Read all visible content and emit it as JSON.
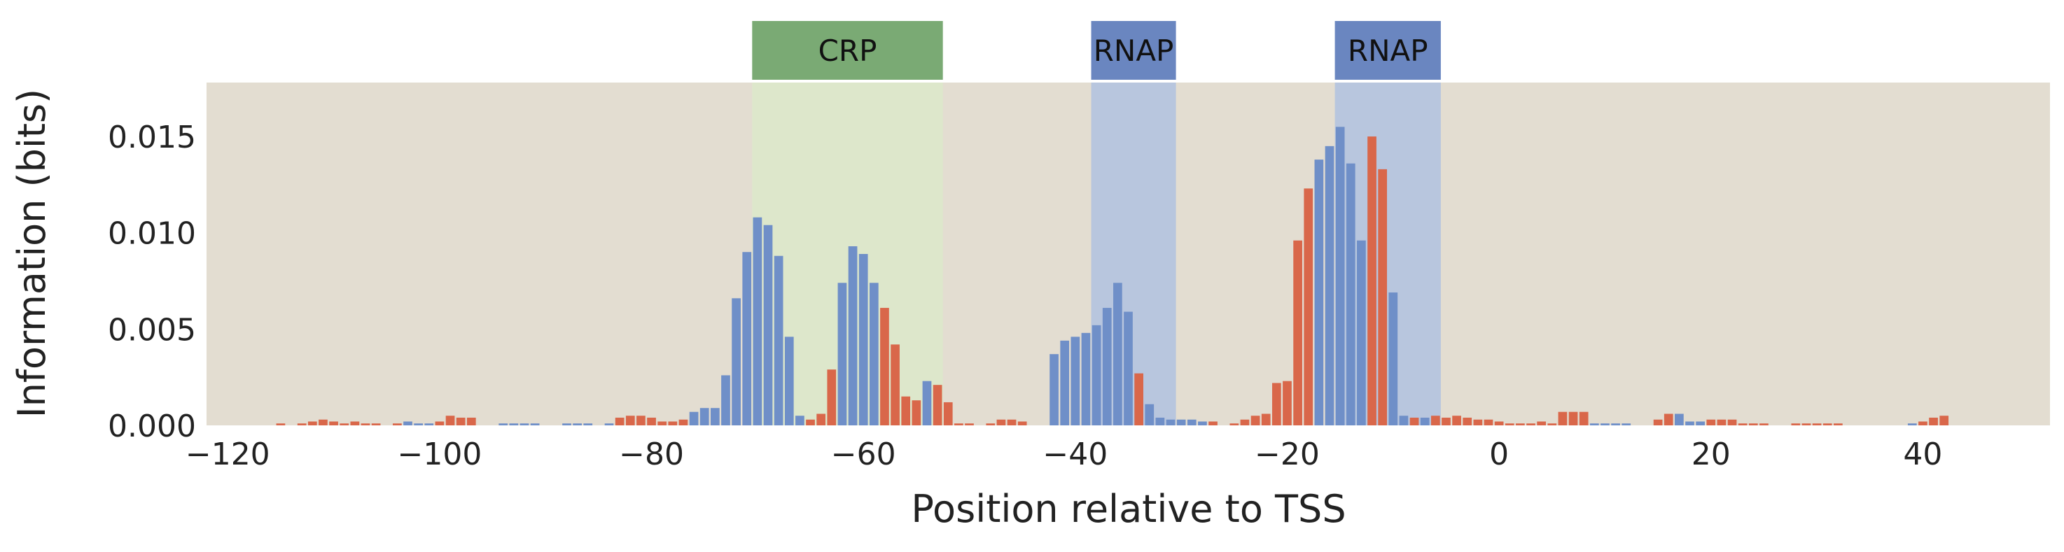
{
  "chart_data": {
    "type": "bar",
    "title": "",
    "xlabel": "Position relative to TSS",
    "ylabel": "Information (bits)",
    "xlim": [
      -122,
      52
    ],
    "ylim": [
      0,
      0.0178
    ],
    "xticks": [
      -120,
      -100,
      -80,
      -60,
      -40,
      -20,
      0,
      20,
      40
    ],
    "xtick_labels": [
      "−120",
      "−100",
      "−80",
      "−60",
      "−40",
      "−20",
      "0",
      "20",
      "40"
    ],
    "yticks": [
      0.0,
      0.005,
      0.01,
      0.015
    ],
    "ytick_labels": [
      "0.000",
      "0.005",
      "0.010",
      "0.015"
    ],
    "grid": false,
    "colors": {
      "positive": "#6f8fc8",
      "negative": "#d9674a",
      "plot_background": "#e3ddd1",
      "crp_fill": "#dde7cb",
      "crp_label": "#7aaa74",
      "rnap_fill": "#b8c6de",
      "rnap_label": "#6a86c0"
    },
    "regions": [
      {
        "label": "CRP",
        "start": -70.5,
        "end": -52.5,
        "kind": "crp"
      },
      {
        "label": "RNAP",
        "start": -38.5,
        "end": -30.5,
        "kind": "rnap"
      },
      {
        "label": "RNAP",
        "start": -15.5,
        "end": -5.5,
        "kind": "rnap"
      }
    ],
    "x_start": -115,
    "values": [
      0.0001,
      0.0,
      0.0001,
      0.0002,
      0.0003,
      0.0002,
      0.0001,
      0.0002,
      0.0001,
      0.0001,
      0.0,
      0.0001,
      0.0002,
      0.0001,
      0.0001,
      0.0002,
      0.0005,
      0.0004,
      0.0004,
      0.0,
      0.0,
      0.0001,
      0.0001,
      0.0001,
      0.0001,
      0.0,
      0.0,
      0.0001,
      0.0001,
      0.0001,
      0.0,
      0.0001,
      0.0004,
      0.0005,
      0.0005,
      0.0004,
      0.0002,
      0.0002,
      0.0003,
      0.0007,
      0.0009,
      0.0009,
      0.0026,
      0.0066,
      0.009,
      0.0108,
      0.0104,
      0.0088,
      0.0046,
      0.0005,
      0.0003,
      0.0006,
      0.0029,
      0.0074,
      0.0093,
      0.0089,
      0.0074,
      0.0061,
      0.0042,
      0.0015,
      0.0013,
      0.0023,
      0.0021,
      0.0012,
      0.0001,
      0.0001,
      0.0,
      0.0001,
      0.0003,
      0.0003,
      0.0002,
      0.0,
      0.0,
      0.0037,
      0.0044,
      0.0046,
      0.0048,
      0.0052,
      0.0061,
      0.0074,
      0.0059,
      0.0027,
      0.0011,
      0.0004,
      0.0003,
      0.0003,
      0.0003,
      0.0002,
      0.0002,
      0.0,
      0.0001,
      0.0003,
      0.0005,
      0.0006,
      0.0022,
      0.0023,
      0.0096,
      0.0123,
      0.0138,
      0.0145,
      0.0155,
      0.0136,
      0.0096,
      0.015,
      0.0133,
      0.0069,
      0.0005,
      0.0004,
      0.0004,
      0.0005,
      0.0004,
      0.0005,
      0.0004,
      0.0003,
      0.0003,
      0.0002,
      0.0001,
      0.0001,
      0.0001,
      0.0002,
      0.0001,
      0.0007,
      0.0007,
      0.0007,
      0.0001,
      0.0001,
      0.0001,
      0.0001,
      0.0,
      0.0,
      0.0003,
      0.0006,
      0.0006,
      0.0002,
      0.0002,
      0.0003,
      0.0003,
      0.0003,
      0.0001,
      0.0001,
      0.0001,
      0.0,
      0.0,
      0.0001,
      0.0001,
      0.0001,
      0.0001,
      0.0001,
      0.0,
      0.0,
      0.0,
      0.0,
      0.0,
      0.0,
      0.0001,
      0.0002,
      0.0004,
      0.0005
    ],
    "colors_by_bar": [
      "n",
      "n",
      "n",
      "n",
      "n",
      "n",
      "n",
      "n",
      "n",
      "n",
      "n",
      "n",
      "p",
      "p",
      "p",
      "n",
      "n",
      "n",
      "n",
      "p",
      "p",
      "p",
      "p",
      "p",
      "p",
      "p",
      "p",
      "p",
      "p",
      "p",
      "p",
      "p",
      "n",
      "n",
      "n",
      "n",
      "n",
      "n",
      "n",
      "p",
      "p",
      "p",
      "p",
      "p",
      "p",
      "p",
      "p",
      "p",
      "p",
      "p",
      "n",
      "n",
      "n",
      "p",
      "p",
      "p",
      "p",
      "n",
      "n",
      "n",
      "n",
      "p",
      "n",
      "n",
      "n",
      "n",
      "n",
      "n",
      "n",
      "n",
      "n",
      "n",
      "n",
      "p",
      "p",
      "p",
      "p",
      "p",
      "p",
      "p",
      "p",
      "n",
      "p",
      "p",
      "p",
      "p",
      "p",
      "p",
      "n",
      "n",
      "n",
      "n",
      "n",
      "n",
      "n",
      "n",
      "n",
      "n",
      "p",
      "p",
      "p",
      "p",
      "p",
      "n",
      "n",
      "p",
      "p",
      "n",
      "p",
      "n",
      "n",
      "n",
      "n",
      "n",
      "n",
      "n",
      "n",
      "n",
      "n",
      "n",
      "n",
      "n",
      "n",
      "n",
      "p",
      "p",
      "p",
      "p",
      "p",
      "n",
      "n",
      "n",
      "p",
      "p",
      "p",
      "n",
      "n",
      "n",
      "n",
      "n",
      "n",
      "n",
      "n",
      "n",
      "n",
      "n",
      "n",
      "n",
      "n",
      "n",
      "n",
      "n",
      "n",
      "p",
      "p",
      "n",
      "n",
      "n"
    ]
  }
}
